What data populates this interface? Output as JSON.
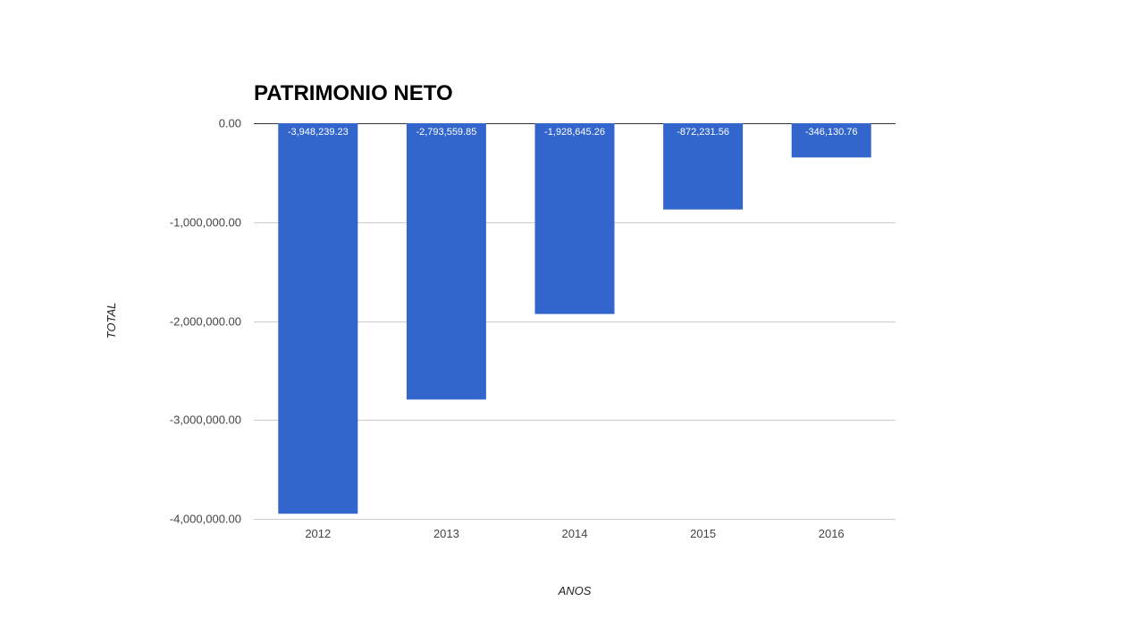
{
  "chart_data": {
    "type": "bar",
    "title": "PATRIMONIO NETO",
    "xlabel": "ANOS",
    "ylabel": "TOTAL",
    "categories": [
      "2012",
      "2013",
      "2014",
      "2015",
      "2016"
    ],
    "values": [
      -3948239.23,
      -2793559.85,
      -1928645.26,
      -872231.56,
      -346130.76
    ],
    "data_labels": [
      "-3,948,239.23",
      "-2,793,559.85",
      "-1,928,645.26",
      "-872,231.56",
      "-346,130.76"
    ],
    "ylim": [
      -4000000,
      0
    ],
    "yticks": [
      0,
      -1000000,
      -2000000,
      -3000000,
      -4000000
    ],
    "ytick_labels": [
      "0.00",
      "-1,000,000.00",
      "-2,000,000.00",
      "-3,000,000.00",
      "-4,000,000.00"
    ],
    "grid": true,
    "bar_color": "#3366cc",
    "gridline_color": "#cccccc",
    "zero_line_color": "#333333"
  }
}
